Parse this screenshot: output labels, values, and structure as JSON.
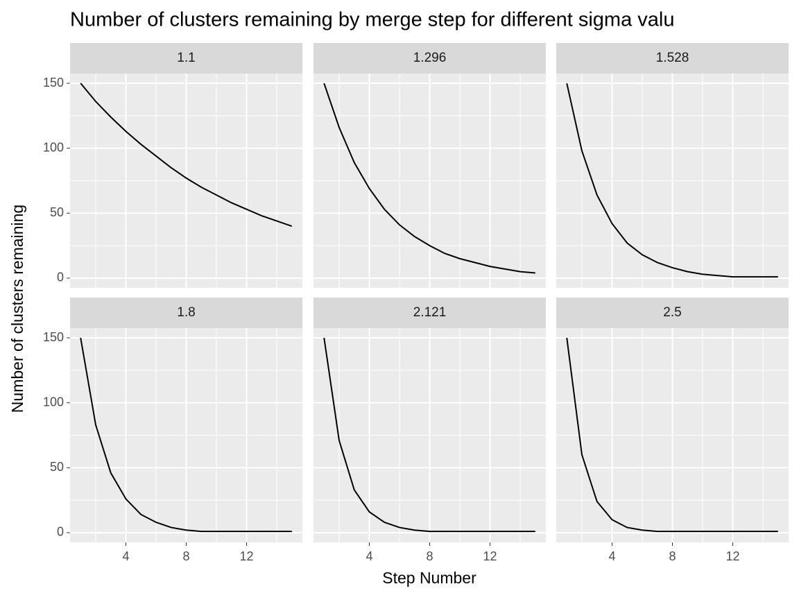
{
  "chart_data": {
    "type": "line",
    "title": "Number of clusters remaining by merge step for different sigma valu",
    "x_label": "Step Number",
    "y_label": "Number of clusters remaining",
    "x": [
      1,
      2,
      3,
      4,
      5,
      6,
      7,
      8,
      9,
      10,
      11,
      12,
      13,
      14,
      15
    ],
    "xlim": [
      0.3,
      15.7
    ],
    "xticks": [
      4,
      8,
      12
    ],
    "xminorticks": [
      2,
      6,
      10,
      14
    ],
    "ylim": [
      -7.5,
      157.5
    ],
    "yticks": [
      0,
      50,
      100,
      150
    ],
    "yminorticks": [
      25,
      75,
      125
    ],
    "grid": true,
    "series": [
      {
        "name": "1.1",
        "color": "#000000",
        "values": [
          150,
          136,
          124,
          113,
          103,
          94,
          85,
          77,
          70,
          64,
          58,
          53,
          48,
          44,
          40
        ]
      },
      {
        "name": "1.296",
        "color": "#000000",
        "values": [
          150,
          116,
          89,
          69,
          53,
          41,
          32,
          25,
          19,
          15,
          12,
          9,
          7,
          5,
          4
        ]
      },
      {
        "name": "1.528",
        "color": "#000000",
        "values": [
          150,
          98,
          64,
          42,
          27,
          18,
          12,
          8,
          5,
          3,
          2,
          1,
          1,
          1,
          1
        ]
      },
      {
        "name": "1.8",
        "color": "#000000",
        "values": [
          150,
          83,
          46,
          26,
          14,
          8,
          4,
          2,
          1,
          1,
          1,
          1,
          1,
          1,
          1
        ]
      },
      {
        "name": "2.121",
        "color": "#000000",
        "values": [
          150,
          71,
          33,
          16,
          8,
          4,
          2,
          1,
          1,
          1,
          1,
          1,
          1,
          1,
          1
        ]
      },
      {
        "name": "2.5",
        "color": "#000000",
        "values": [
          150,
          60,
          24,
          10,
          4,
          2,
          1,
          1,
          1,
          1,
          1,
          1,
          1,
          1,
          1
        ]
      }
    ]
  }
}
